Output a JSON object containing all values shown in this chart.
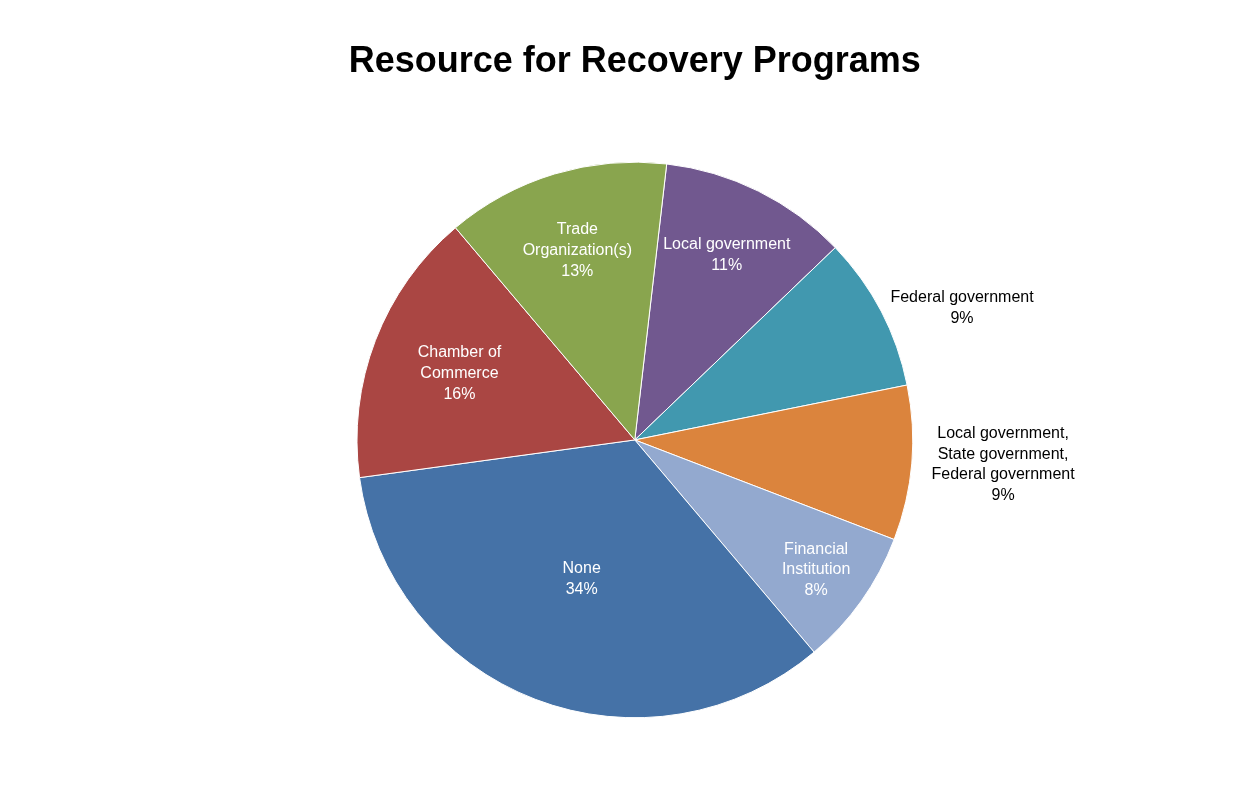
{
  "chart_data": {
    "type": "pie",
    "title": "Resource for Recovery Programs",
    "categories": [
      "Local government",
      "Federal government",
      "Local government, State government, Federal government",
      "Financial Institution",
      "None",
      "Chamber of Commerce",
      "Trade Organization(s)"
    ],
    "values": [
      11,
      9,
      9,
      8,
      34,
      16,
      13
    ],
    "value_labels": [
      "11%",
      "9%",
      "9%",
      "8%",
      "34%",
      "16%",
      "13%"
    ],
    "colors": [
      "#71588f",
      "#4198af",
      "#db843d",
      "#93a9cf",
      "#4572a7",
      "#aa4643",
      "#89a54e"
    ],
    "legend": false
  }
}
